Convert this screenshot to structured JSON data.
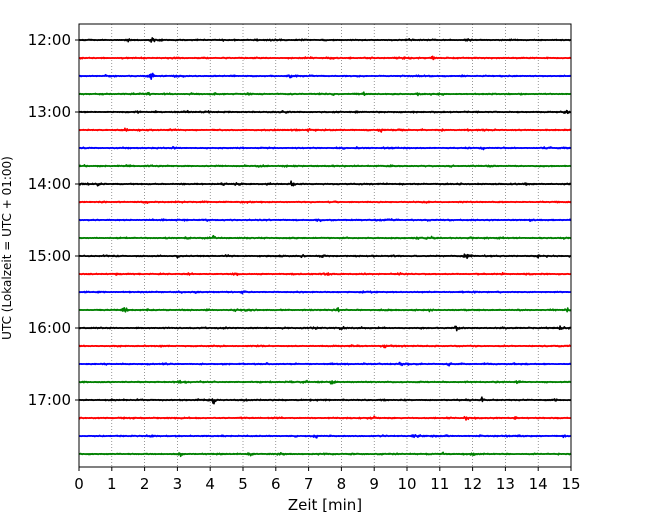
{
  "chart_data": {
    "type": "line",
    "title": "",
    "xlabel": "Zeit  [min]",
    "ylabel": "UTC (Lokalzeit = UTC + 01:00)",
    "xlim": [
      0,
      15
    ],
    "x_ticks": [
      0,
      1,
      2,
      3,
      4,
      5,
      6,
      7,
      8,
      9,
      10,
      11,
      12,
      13,
      14,
      15
    ],
    "y_tick_labels": [
      "12:00",
      "13:00",
      "14:00",
      "15:00",
      "16:00",
      "17:00"
    ],
    "vertical_grid": true,
    "trace_interval_min": 15,
    "trace_colors": [
      "#000000",
      "#ff0000",
      "#0000ff",
      "#008000"
    ],
    "traces": [
      {
        "start": "12:00",
        "color": "#000000",
        "events": [
          [
            1.5,
            0.5
          ],
          [
            2.25,
            0.9
          ],
          [
            11.9,
            0.4
          ]
        ]
      },
      {
        "start": "12:15",
        "color": "#ff0000",
        "events": [
          [
            10.8,
            0.6
          ],
          [
            3.9,
            0.3
          ]
        ]
      },
      {
        "start": "12:30",
        "color": "#0000ff",
        "events": [
          [
            2.2,
            1.4
          ],
          [
            11.7,
            0.4
          ],
          [
            6.4,
            0.3
          ]
        ]
      },
      {
        "start": "12:45",
        "color": "#008000",
        "events": [
          [
            8.7,
            0.4
          ],
          [
            2.1,
            0.3
          ],
          [
            4.1,
            0.3
          ]
        ]
      },
      {
        "start": "13:00",
        "color": "#000000",
        "events": [
          [
            6.2,
            0.5
          ],
          [
            14.8,
            0.5
          ],
          [
            1.8,
            0.3
          ]
        ]
      },
      {
        "start": "13:15",
        "color": "#ff0000",
        "events": [
          [
            1.4,
            0.4
          ],
          [
            7.0,
            0.5
          ],
          [
            9.2,
            0.4
          ]
        ]
      },
      {
        "start": "13:30",
        "color": "#0000ff",
        "events": [
          [
            2.9,
            0.4
          ],
          [
            12.3,
            0.3
          ]
        ]
      },
      {
        "start": "13:45",
        "color": "#008000",
        "events": [
          [
            1.5,
            0.3
          ],
          [
            6.3,
            0.3
          ],
          [
            12.5,
            0.3
          ]
        ]
      },
      {
        "start": "14:00",
        "color": "#000000",
        "events": [
          [
            6.5,
            1.0
          ],
          [
            0.6,
            0.5
          ],
          [
            13.6,
            0.5
          ],
          [
            4.4,
            0.4
          ]
        ]
      },
      {
        "start": "14:15",
        "color": "#ff0000",
        "events": [
          [
            2.0,
            0.4
          ],
          [
            4.5,
            0.3
          ],
          [
            9.5,
            0.3
          ]
        ]
      },
      {
        "start": "14:30",
        "color": "#0000ff",
        "events": [
          [
            7.3,
            0.3
          ],
          [
            13.8,
            0.3
          ]
        ]
      },
      {
        "start": "14:45",
        "color": "#008000",
        "events": [
          [
            4.1,
            0.4
          ],
          [
            11.9,
            0.4
          ]
        ]
      },
      {
        "start": "15:00",
        "color": "#000000",
        "events": [
          [
            3.0,
            0.5
          ],
          [
            11.9,
            0.5
          ],
          [
            14.0,
            0.4
          ]
        ]
      },
      {
        "start": "15:15",
        "color": "#ff0000",
        "events": [
          [
            3.4,
            0.3
          ],
          [
            9.8,
            0.3
          ]
        ]
      },
      {
        "start": "15:30",
        "color": "#0000ff",
        "events": [
          [
            10.4,
            0.6
          ],
          [
            5.0,
            0.3
          ]
        ]
      },
      {
        "start": "15:45",
        "color": "#008000",
        "events": [
          [
            1.4,
            1.3
          ],
          [
            7.9,
            0.5
          ],
          [
            14.9,
            0.4
          ],
          [
            3.9,
            0.3
          ]
        ]
      },
      {
        "start": "16:00",
        "color": "#000000",
        "events": [
          [
            11.5,
            0.6
          ],
          [
            14.7,
            0.6
          ],
          [
            8.0,
            0.4
          ]
        ]
      },
      {
        "start": "16:15",
        "color": "#ff0000",
        "events": [
          [
            9.3,
            0.4
          ],
          [
            11.6,
            0.4
          ]
        ]
      },
      {
        "start": "16:30",
        "color": "#0000ff",
        "events": [
          [
            9.8,
            0.5
          ],
          [
            11.3,
            0.4
          ]
        ]
      },
      {
        "start": "16:45",
        "color": "#008000",
        "events": [
          [
            3.0,
            0.5
          ],
          [
            7.7,
            0.4
          ],
          [
            13.4,
            0.3
          ]
        ]
      },
      {
        "start": "17:00",
        "color": "#000000",
        "events": [
          [
            4.1,
            0.8
          ],
          [
            12.3,
            0.5
          ],
          [
            14.5,
            0.5
          ]
        ]
      },
      {
        "start": "17:15",
        "color": "#ff0000",
        "events": [
          [
            9.0,
            0.5
          ],
          [
            11.8,
            0.4
          ],
          [
            13.3,
            0.3
          ]
        ]
      },
      {
        "start": "17:30",
        "color": "#0000ff",
        "events": [
          [
            7.2,
            0.5
          ],
          [
            10.2,
            0.5
          ],
          [
            14.8,
            0.4
          ]
        ]
      },
      {
        "start": "17:45",
        "color": "#008000",
        "events": [
          [
            3.1,
            0.5
          ],
          [
            5.2,
            0.5
          ],
          [
            12.0,
            0.4
          ]
        ]
      }
    ]
  }
}
